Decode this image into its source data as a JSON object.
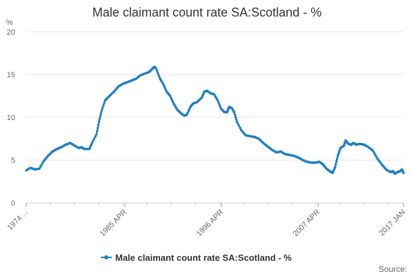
{
  "chart_data": {
    "type": "line",
    "title": "Male claimant count rate SA:Scotland - %",
    "y_unit_label": "%",
    "xlabel": "",
    "ylabel": "",
    "ylim": [
      0,
      20
    ],
    "y_ticks": [
      0,
      5,
      10,
      15,
      20
    ],
    "x_range": [
      1974.0,
      2017.0
    ],
    "x_ticks": [
      {
        "year": 1974.0,
        "label": "1974 ..."
      },
      {
        "year": 1985.25,
        "label": "1985 APR"
      },
      {
        "year": 1996.25,
        "label": "1996 APR"
      },
      {
        "year": 2007.25,
        "label": "2007 APR"
      },
      {
        "year": 2017.0,
        "label": "2017 JAN"
      }
    ],
    "grid": "horizontal",
    "legend": "bottom-center",
    "source_label": "Source:",
    "colors": {
      "series": "#1f7fc1",
      "grid": "#e6e6e6",
      "axis": "#cccccc"
    },
    "series": [
      {
        "name": "Male claimant count rate SA:Scotland - %",
        "points": [
          [
            1974.0,
            3.8
          ],
          [
            1974.5,
            4.1
          ],
          [
            1975.0,
            3.9
          ],
          [
            1975.5,
            4.0
          ],
          [
            1976.0,
            4.9
          ],
          [
            1976.5,
            5.5
          ],
          [
            1977.0,
            6.0
          ],
          [
            1977.5,
            6.3
          ],
          [
            1978.0,
            6.5
          ],
          [
            1978.5,
            6.8
          ],
          [
            1979.0,
            7.0
          ],
          [
            1979.5,
            6.7
          ],
          [
            1980.0,
            6.4
          ],
          [
            1980.3,
            6.5
          ],
          [
            1980.6,
            6.3
          ],
          [
            1981.2,
            6.3
          ],
          [
            1981.5,
            7.0
          ],
          [
            1982.0,
            8.0
          ],
          [
            1982.3,
            9.5
          ],
          [
            1982.6,
            10.8
          ],
          [
            1983.0,
            12.0
          ],
          [
            1983.5,
            12.5
          ],
          [
            1984.0,
            13.0
          ],
          [
            1984.5,
            13.6
          ],
          [
            1985.0,
            13.9
          ],
          [
            1985.5,
            14.1
          ],
          [
            1986.0,
            14.3
          ],
          [
            1986.5,
            14.5
          ],
          [
            1987.0,
            14.9
          ],
          [
            1987.5,
            15.1
          ],
          [
            1988.0,
            15.3
          ],
          [
            1988.3,
            15.6
          ],
          [
            1988.6,
            15.9
          ],
          [
            1988.8,
            15.7
          ],
          [
            1989.2,
            14.6
          ],
          [
            1989.6,
            13.9
          ],
          [
            1990.0,
            13.0
          ],
          [
            1990.4,
            12.5
          ],
          [
            1990.8,
            11.6
          ],
          [
            1991.2,
            10.9
          ],
          [
            1991.6,
            10.5
          ],
          [
            1992.0,
            10.2
          ],
          [
            1992.3,
            10.3
          ],
          [
            1992.7,
            11.2
          ],
          [
            1993.0,
            11.6
          ],
          [
            1993.5,
            11.8
          ],
          [
            1994.0,
            12.3
          ],
          [
            1994.3,
            13.0
          ],
          [
            1994.6,
            13.1
          ],
          [
            1995.0,
            12.8
          ],
          [
            1995.4,
            12.7
          ],
          [
            1995.8,
            12.0
          ],
          [
            1996.2,
            11.0
          ],
          [
            1996.6,
            10.6
          ],
          [
            1996.9,
            10.6
          ],
          [
            1997.1,
            11.2
          ],
          [
            1997.4,
            11.1
          ],
          [
            1997.7,
            10.6
          ],
          [
            1998.0,
            9.5
          ],
          [
            1998.5,
            8.5
          ],
          [
            1999.0,
            7.9
          ],
          [
            1999.5,
            7.8
          ],
          [
            2000.0,
            7.7
          ],
          [
            2000.5,
            7.5
          ],
          [
            2001.0,
            7.0
          ],
          [
            2001.5,
            6.6
          ],
          [
            2002.0,
            6.2
          ],
          [
            2002.5,
            5.9
          ],
          [
            2003.0,
            6.0
          ],
          [
            2003.5,
            5.7
          ],
          [
            2004.0,
            5.6
          ],
          [
            2004.5,
            5.5
          ],
          [
            2005.0,
            5.3
          ],
          [
            2005.5,
            5.0
          ],
          [
            2006.0,
            4.8
          ],
          [
            2006.5,
            4.7
          ],
          [
            2007.0,
            4.7
          ],
          [
            2007.4,
            4.8
          ],
          [
            2007.8,
            4.5
          ],
          [
            2008.2,
            4.0
          ],
          [
            2008.6,
            3.7
          ],
          [
            2008.9,
            3.5
          ],
          [
            2009.2,
            4.2
          ],
          [
            2009.5,
            5.5
          ],
          [
            2009.8,
            6.4
          ],
          [
            2010.2,
            6.7
          ],
          [
            2010.4,
            7.3
          ],
          [
            2010.7,
            6.9
          ],
          [
            2011.0,
            6.8
          ],
          [
            2011.3,
            7.0
          ],
          [
            2011.6,
            6.8
          ],
          [
            2012.0,
            6.9
          ],
          [
            2012.5,
            6.8
          ],
          [
            2013.0,
            6.5
          ],
          [
            2013.5,
            6.1
          ],
          [
            2014.0,
            5.2
          ],
          [
            2014.5,
            4.5
          ],
          [
            2015.0,
            3.9
          ],
          [
            2015.5,
            3.6
          ],
          [
            2015.8,
            3.7
          ],
          [
            2016.0,
            3.4
          ],
          [
            2016.3,
            3.6
          ],
          [
            2016.6,
            3.7
          ],
          [
            2016.8,
            3.9
          ],
          [
            2017.0,
            3.5
          ]
        ]
      }
    ]
  }
}
